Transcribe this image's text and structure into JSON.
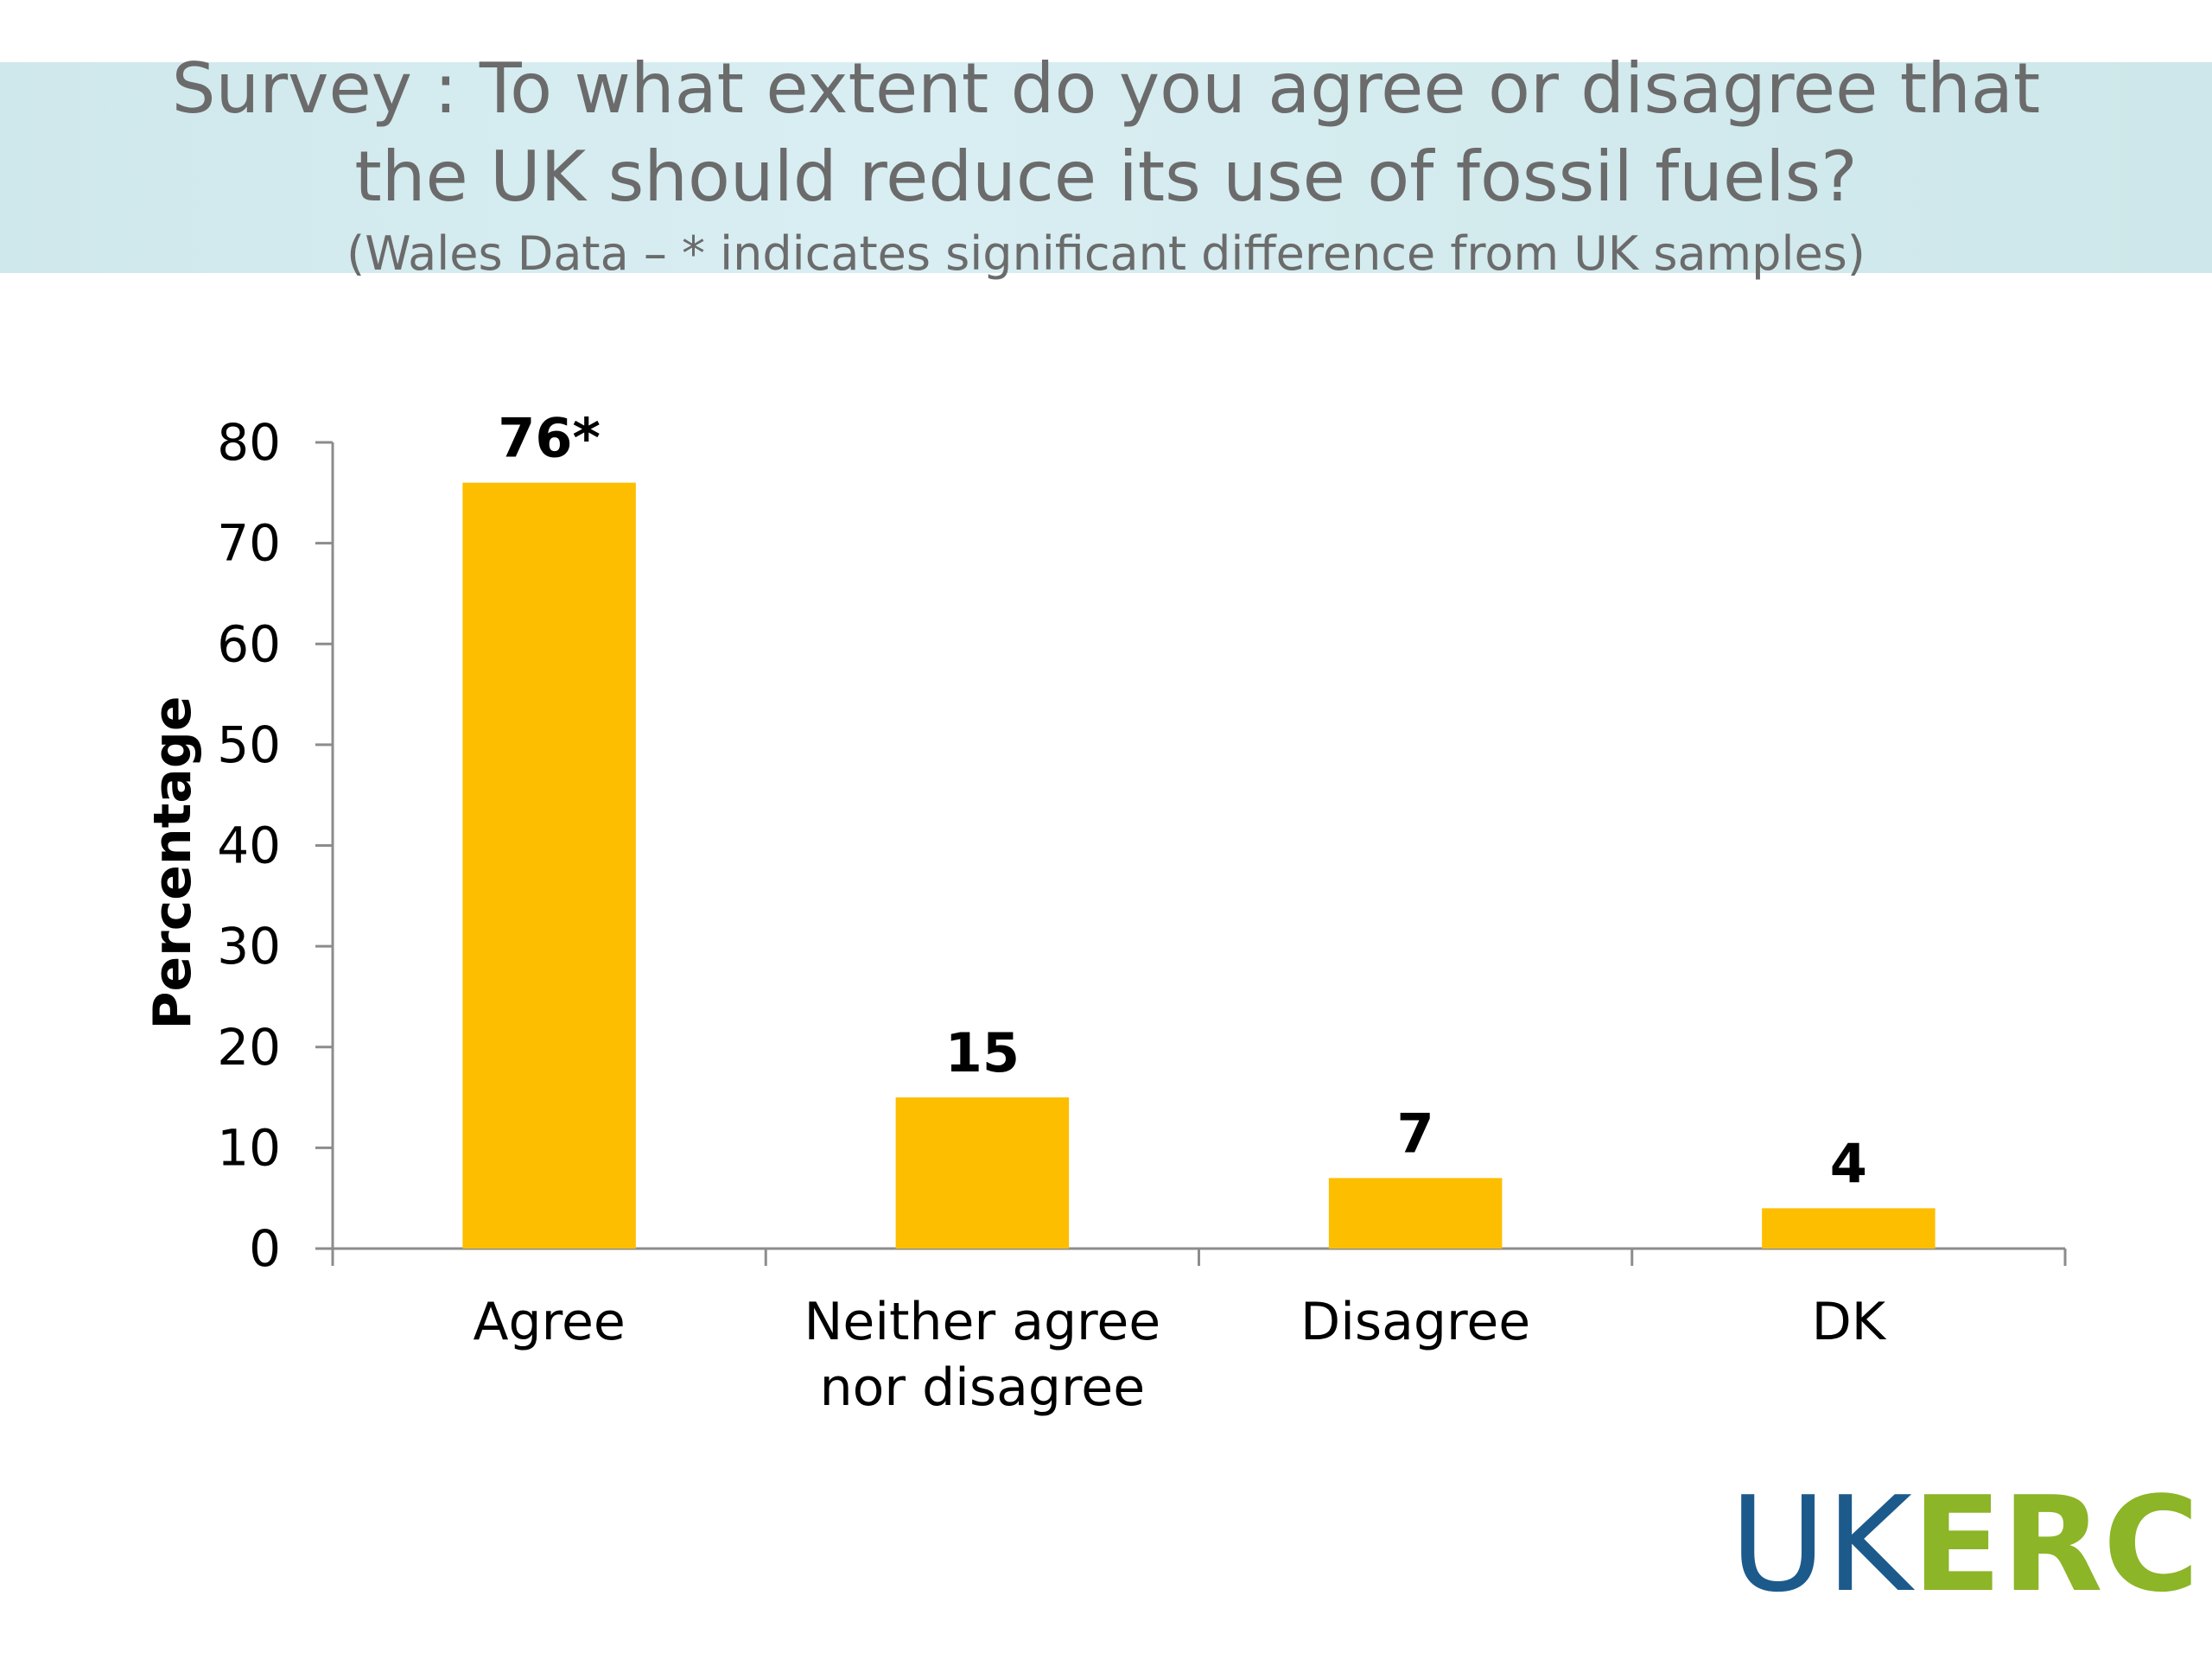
{
  "header": {
    "title_line1": "Survey : To what extent do you agree or disagree that",
    "title_line2": "the UK should reduce its use of fossil fuels?",
    "subtitle": "(Wales Data –  * indicates significant difference from UK samples)"
  },
  "logo": {
    "part1": "UK",
    "part2": "ERC"
  },
  "colors": {
    "bar": "#FDBE00",
    "banner": "#D2EBEF",
    "logo_blue": "#1D5A8C",
    "logo_green": "#8CB527"
  },
  "chart_data": {
    "type": "bar",
    "categories": [
      [
        "Agree"
      ],
      [
        "Neither agree",
        "nor disagree"
      ],
      [
        "Disagree"
      ],
      [
        "DK"
      ]
    ],
    "values": [
      76,
      15,
      7,
      4
    ],
    "data_labels": [
      "76*",
      "15",
      "7",
      "4"
    ],
    "ylabel": "Percentage",
    "ylim": [
      0,
      80
    ],
    "yticks": [
      0,
      10,
      20,
      30,
      40,
      50,
      60,
      70,
      80
    ],
    "grid": false,
    "legend": "none"
  }
}
